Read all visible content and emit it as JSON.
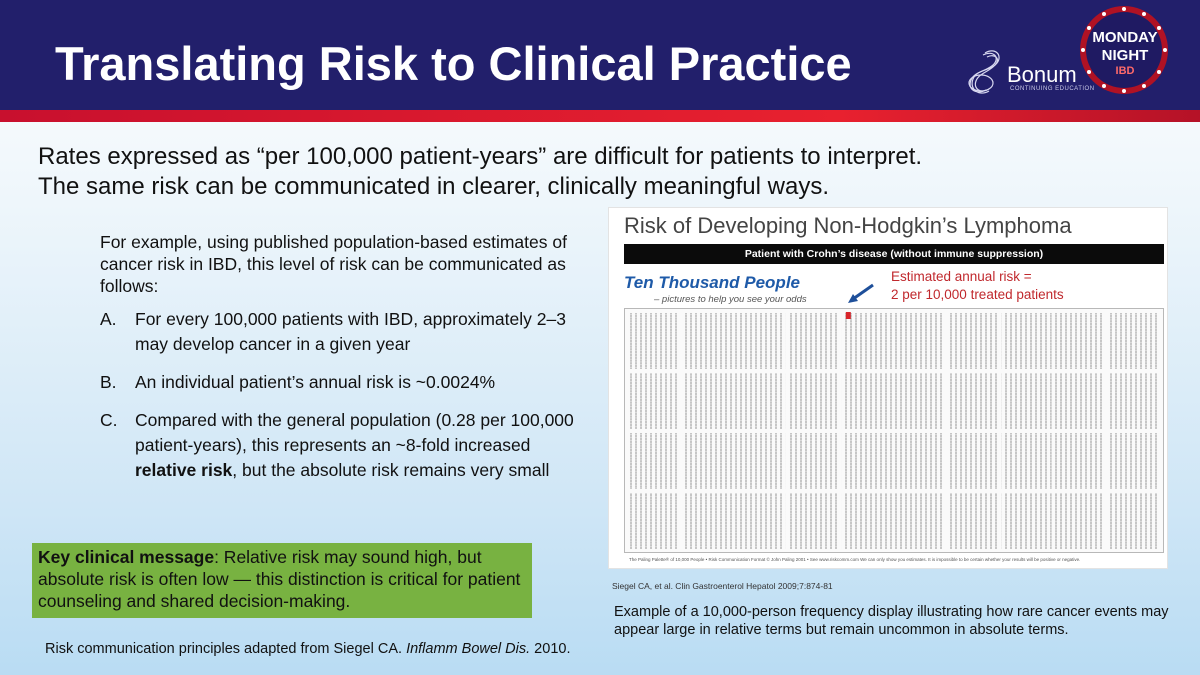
{
  "header": {
    "title": "Translating Risk to Clinical Practice",
    "logo_text": "Bonum",
    "logo_subtext": "CONTINUING EDUCATION",
    "badge_line1": "MONDAY",
    "badge_line2": "NIGHT",
    "badge_line3": "IBD",
    "colors": {
      "band": "#221f6b",
      "stripe": "#e8212f"
    }
  },
  "intro": {
    "line1": "Rates expressed as “per 100,000 patient-years” are difficult for patients to interpret.",
    "line2": "The same risk can be communicated in clearer, clinically meaningful ways."
  },
  "body": {
    "intro_text": "For example, using published population-based estimates of cancer risk in IBD, this level of risk can be communicated as follows:",
    "items": [
      {
        "marker": "A.",
        "text": "For every 100,000 patients with IBD, approximately 2–3 may develop cancer in a given year"
      },
      {
        "marker": "B.",
        "text": "An individual patient’s annual risk is ~0.0024%"
      },
      {
        "marker": "C.",
        "text_before": "Compared with the general population (0.28 per 100,000 patient-years), this represents an ~8-fold increased ",
        "text_bold": "relative risk",
        "text_after": ", but the absolute risk remains very small"
      }
    ]
  },
  "key_message": {
    "label": "Key clinical message",
    "text": ": Relative risk may sound high, but absolute risk is often low — this distinction is critical for patient counseling and shared decision-making.",
    "color": "#78b241"
  },
  "reference_left": {
    "before": "Risk communication principles adapted from Siegel CA. ",
    "journal": "Inflamm Bowel Dis.",
    "after": " 2010."
  },
  "figure": {
    "title": "Risk of Developing Non-Hodgkin’s Lymphoma",
    "subtitle_bar": "Patient with Crohn’s disease (without immune suppression)",
    "ttp_title": "Ten Thousand People",
    "ttp_subtitle": "– pictures to help you see your odds",
    "estimate_line1": "Estimated annual risk =",
    "estimate_line2": "2 per 10,000 treated patients",
    "footer": "The Paling Palette® of 10,000 People  •  Risk Communication Format © John Paling 2001  •  See www.riskcomm.com        We can only show you estimates. It is impossible to be certain whether your results will be positive or negative.",
    "highlight_color": "#d9252b",
    "affected": 2,
    "total": 10000
  },
  "figure_ref": "Siegel CA, et al. Clin Gastroenterol Hepatol 2009;7:874-81",
  "caption": "Example of a 10,000-person frequency display illustrating how rare cancer events may appear large in relative terms but remain uncommon in absolute terms."
}
